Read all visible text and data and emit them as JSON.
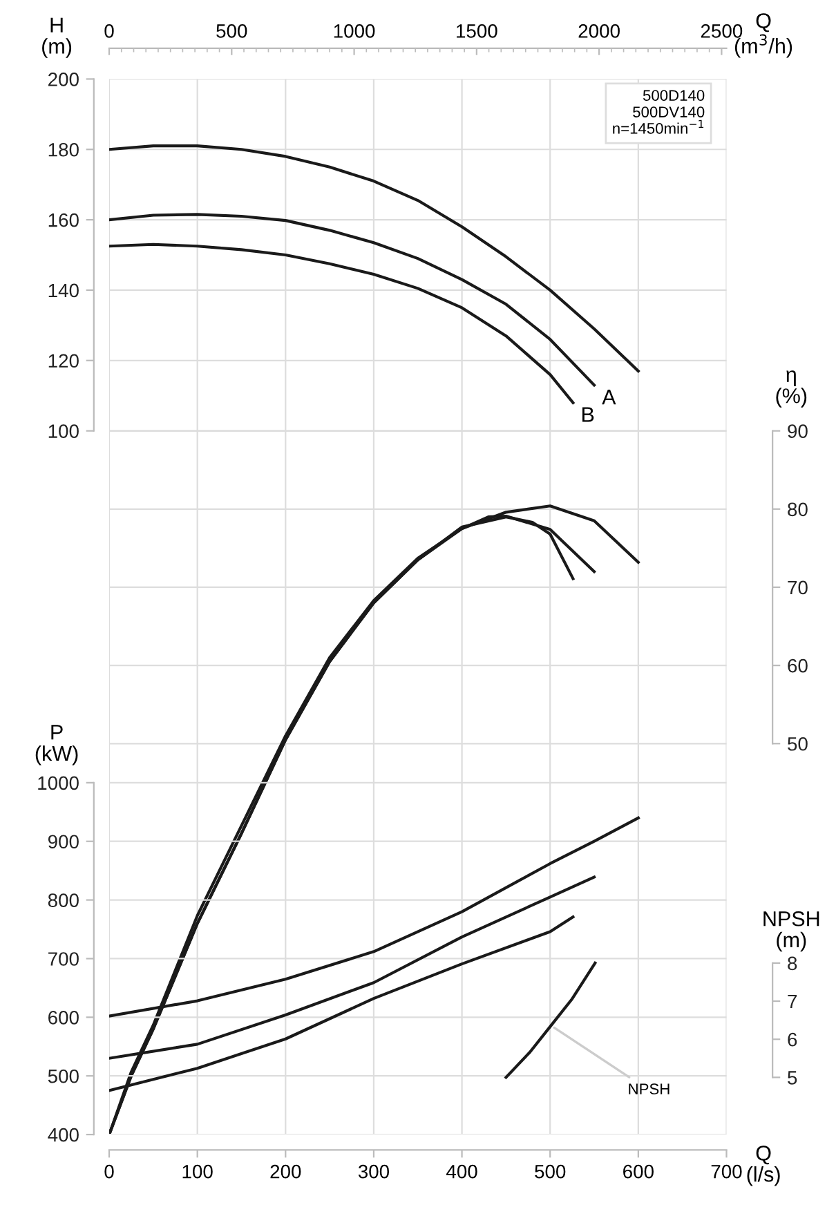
{
  "chart_data": [
    {
      "type": "line",
      "xlabel": "Q\n(l/s)",
      "x2label": "Q\n(m$^{3}$/h)",
      "ylabel": "H\n(m)",
      "y2label": "η\n(%)",
      "y3label": "P\n(kW)",
      "xlim": [
        0,
        700
      ],
      "xticks": [
        0,
        100,
        200,
        300,
        400,
        500,
        600,
        700
      ],
      "x2lim": [
        0,
        2520
      ],
      "x2ticks": [
        0,
        500,
        1000,
        1500,
        2000,
        2500
      ],
      "ylim": [
        -100,
        200
      ],
      "yticks": [
        100,
        120,
        140,
        160,
        180,
        200
      ],
      "y2lim": [
        0,
        135
      ],
      "y2ticks": [
        50,
        60,
        70,
        80,
        90
      ],
      "y3lim": [
        400,
        2200
      ],
      "y3ticks": [
        400,
        500,
        600,
        700,
        800,
        900,
        1000
      ],
      "grid": true,
      "legend": false,
      "marker": "none",
      "line_style": "solid",
      "series": [
        {
          "axis": "y",
          "color": "#1a1a1a",
          "x": [
            0,
            50,
            100,
            150,
            200,
            250,
            300,
            350,
            400,
            450,
            500,
            550,
            600
          ],
          "values": [
            180,
            181,
            181,
            180,
            178,
            175,
            171,
            165.5,
            158,
            149.5,
            140,
            129,
            117
          ]
        },
        {
          "axis": "y",
          "name": "A",
          "color": "#1a1a1a",
          "x": [
            0,
            50,
            100,
            150,
            200,
            250,
            300,
            350,
            400,
            450,
            500,
            550
          ],
          "values": [
            160,
            161.3,
            161.5,
            161,
            159.8,
            157,
            153.5,
            149,
            143,
            136,
            126,
            113
          ]
        },
        {
          "axis": "y",
          "name": "B",
          "color": "#1a1a1a",
          "x": [
            0,
            50,
            100,
            150,
            200,
            250,
            300,
            350,
            400,
            450,
            500,
            526
          ],
          "values": [
            152.5,
            153,
            152.5,
            151.5,
            150,
            147.5,
            144.5,
            140.5,
            135,
            127,
            116,
            108
          ]
        },
        {
          "axis": "y2",
          "color": "#1a1a1a",
          "x": [
            0,
            25,
            50,
            100,
            150,
            200,
            250,
            300,
            350,
            400,
            450,
            500,
            550,
            600
          ],
          "values": [
            0,
            8,
            14,
            28,
            39.5,
            51,
            61,
            68.3,
            73.7,
            77.5,
            79.6,
            80.4,
            78.5,
            73.2
          ]
        },
        {
          "axis": "y2",
          "color": "#1a1a1a",
          "x": [
            0,
            25,
            50,
            100,
            150,
            200,
            250,
            300,
            350,
            400,
            430,
            450,
            500,
            550
          ],
          "values": [
            0,
            7.5,
            13.5,
            27,
            38.5,
            50.5,
            60.5,
            68,
            73.5,
            77.5,
            79,
            79.1,
            77.4,
            72
          ]
        },
        {
          "axis": "y2",
          "color": "#1a1a1a",
          "x": [
            0,
            25,
            50,
            100,
            150,
            200,
            250,
            300,
            350,
            400,
            450,
            480,
            500,
            526
          ],
          "values": [
            0,
            7.5,
            13.5,
            27,
            38.5,
            50.5,
            60.5,
            68,
            73.5,
            77.7,
            79,
            78.3,
            76.8,
            71.1
          ]
        },
        {
          "axis": "y3",
          "color": "#1a1a1a",
          "x": [
            0,
            100,
            200,
            300,
            400,
            500,
            550,
            600
          ],
          "values": [
            602,
            628,
            665,
            712,
            780,
            862,
            900,
            940
          ]
        },
        {
          "axis": "y3",
          "color": "#1a1a1a",
          "x": [
            0,
            100,
            200,
            300,
            400,
            500,
            550
          ],
          "values": [
            530,
            554,
            604,
            659,
            737,
            805,
            839
          ]
        },
        {
          "axis": "y3",
          "color": "#1a1a1a",
          "x": [
            0,
            100,
            200,
            300,
            400,
            500,
            526
          ],
          "values": [
            475,
            513,
            563,
            632,
            691,
            746,
            771
          ]
        }
      ],
      "annotations": [
        "500D140\n500DV140\nn=1450min$^{−1}$"
      ]
    },
    {
      "type": "line",
      "ylabel": "NPSH\n(m)",
      "xlim": [
        0,
        700
      ],
      "ylim": [
        3.5,
        31.2
      ],
      "yticks": [
        5,
        6,
        7,
        8
      ],
      "series": [
        {
          "color": "#1a1a1a",
          "x": [
            450,
            477,
            501,
            525,
            551
          ],
          "values": [
            5.0,
            5.66,
            6.36,
            7.06,
            8.0
          ]
        }
      ],
      "annotations": [
        {
          "text": "NPSH",
          "x": 501,
          "y": 6.36
        }
      ]
    }
  ]
}
